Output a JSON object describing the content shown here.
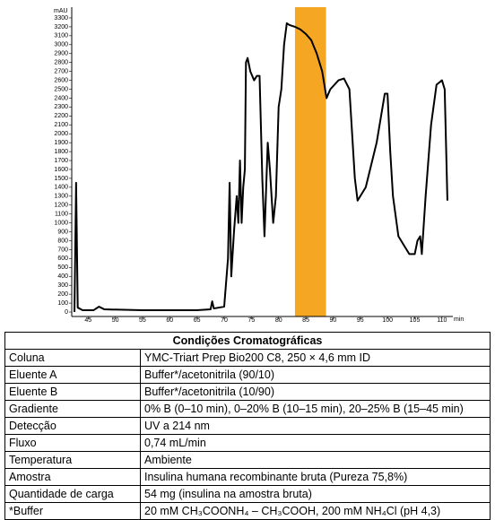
{
  "chart_data": {
    "type": "line",
    "y_label": "mAU",
    "x_label": "min",
    "xlim": [
      42,
      112
    ],
    "ylim": [
      -50,
      3350
    ],
    "xticks": [
      45,
      50,
      55,
      60,
      65,
      70,
      75,
      80,
      85,
      90,
      95,
      100,
      105,
      110
    ],
    "yticks": [
      0,
      100,
      200,
      300,
      400,
      500,
      600,
      700,
      800,
      900,
      1000,
      1100,
      1200,
      1300,
      1400,
      1500,
      1600,
      1700,
      1800,
      1900,
      2000,
      2100,
      2200,
      2300,
      2400,
      2500,
      2600,
      2700,
      2800,
      2900,
      3000,
      3100,
      3200,
      3300
    ],
    "highlight": [
      83,
      88.7
    ],
    "highlight_color": "#f5a623",
    "color": "#000000",
    "x": [
      42.5,
      42.8,
      43.1,
      44,
      46,
      47,
      48,
      55,
      65,
      67.5,
      67.8,
      68.1,
      70,
      70.7,
      71.0,
      71.3,
      71.8,
      72.3,
      72.6,
      72.9,
      73.2,
      73.5,
      73.8,
      74.0,
      74.3,
      74.8,
      75.5,
      76,
      76.5,
      77.0,
      77.4,
      78.0,
      78.4,
      79.0,
      79.5,
      80.0,
      80.5,
      81,
      81.5,
      82,
      83,
      84,
      85,
      86,
      87,
      88,
      88.8,
      89.5,
      91,
      92,
      93,
      94,
      94.5,
      96,
      98,
      99.5,
      100,
      100.5,
      101,
      102,
      103,
      104,
      105,
      105.5,
      106,
      106.3,
      107,
      108,
      109,
      110,
      110.5,
      111
    ],
    "values": [
      0,
      1450,
      50,
      20,
      20,
      60,
      30,
      20,
      20,
      30,
      120,
      40,
      60,
      600,
      1450,
      400,
      900,
      1300,
      1000,
      1700,
      1000,
      1400,
      1600,
      2800,
      2850,
      2700,
      2600,
      2650,
      2650,
      1500,
      850,
      1900,
      1600,
      1000,
      1300,
      2300,
      2500,
      3000,
      3240,
      3220,
      3200,
      3170,
      3120,
      3050,
      2900,
      2700,
      2400,
      2500,
      2600,
      2620,
      2500,
      1500,
      1250,
      1400,
      1900,
      2450,
      2450,
      1800,
      1300,
      850,
      750,
      650,
      650,
      800,
      850,
      650,
      1300,
      2100,
      2550,
      2600,
      2500,
      1250
    ]
  },
  "table": {
    "title": "Condições Cromatográficas",
    "rows": [
      [
        "Coluna",
        "YMC-Triart Prep Bio200 C8, 250 × 4,6 mm ID"
      ],
      [
        "Eluente A",
        "Buffer*/acetonitrila (90/10)"
      ],
      [
        "Eluente B",
        "Buffer*/acetonitrila (10/90)"
      ],
      [
        "Gradiente",
        "0% B (0–10 min), 0–20% B (10–15 min), 20–25% B (15–45 min)"
      ],
      [
        "Detecção",
        "UV a 214 nm"
      ],
      [
        "Fluxo",
        "0,74 mL/min"
      ],
      [
        "Temperatura",
        "Ambiente"
      ],
      [
        "Amostra",
        "Insulina humana recombinante bruta (Pureza 75,8%)"
      ],
      [
        "Quantidade de carga",
        "54 mg (insulina na amostra bruta)"
      ],
      [
        "*Buffer",
        "20 mM CH₃COONH₄ – CH₃COOH, 200 mM NH₄Cl (pH 4,3)"
      ]
    ]
  }
}
